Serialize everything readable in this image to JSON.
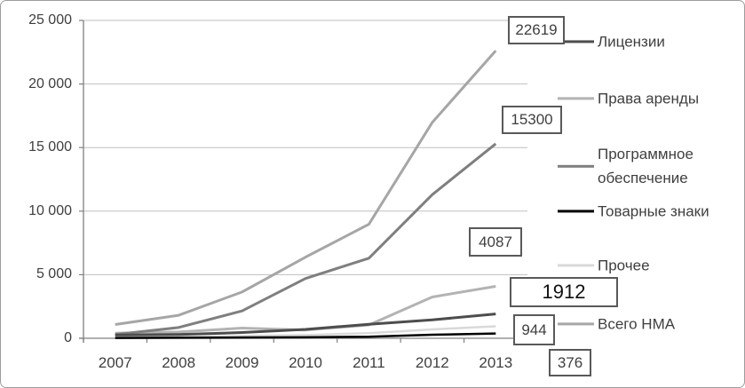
{
  "chart_data": {
    "type": "line",
    "title": "",
    "xlabel": "",
    "ylabel": "",
    "categories": [
      "2007",
      "2008",
      "2009",
      "2010",
      "2011",
      "2012",
      "2013"
    ],
    "series": [
      {
        "name": "Лицензии",
        "color": "#4d4d4d",
        "width": 3,
        "values": [
          250,
          300,
          450,
          700,
          1100,
          1450,
          1912
        ]
      },
      {
        "name": "Права аренды",
        "color": "#b3b3b3",
        "width": 3,
        "values": [
          400,
          500,
          800,
          650,
          1050,
          3250,
          4087
        ]
      },
      {
        "name": "Программное обеспечение",
        "color": "#7f7f7f",
        "width": 3,
        "values": [
          300,
          850,
          2150,
          4700,
          6300,
          11300,
          15300
        ]
      },
      {
        "name": "Товарные знаки",
        "color": "#000000",
        "width": 2.5,
        "values": [
          30,
          40,
          60,
          80,
          120,
          280,
          376
        ]
      },
      {
        "name": "Прочее",
        "color": "#d9d9d9",
        "width": 2.5,
        "values": [
          100,
          120,
          180,
          250,
          400,
          700,
          944
        ]
      },
      {
        "name": "Всего НМА",
        "color": "#a6a6a6",
        "width": 3,
        "values": [
          1080,
          1810,
          3640,
          6380,
          8970,
          16980,
          22619
        ]
      }
    ],
    "ylim": [
      0,
      25000
    ],
    "ytick_step": 5000,
    "yticklabels": [
      "25 000",
      "20 000",
      "15 000",
      "10 000",
      "5 000",
      "0"
    ],
    "grid": true,
    "gridline_color": "#bfbfbf",
    "axis_color": "#808080",
    "legend_position": "right",
    "data_labels_2013": [
      {
        "series": "Всего НМА",
        "text": "22619",
        "emphasis": false
      },
      {
        "series": "Программное обеспечение",
        "text": "15300",
        "emphasis": false
      },
      {
        "series": "Права аренды",
        "text": "4087",
        "emphasis": false
      },
      {
        "series": "Лицензии",
        "text": "1912",
        "emphasis": true
      },
      {
        "series": "Прочее",
        "text": "944",
        "emphasis": false
      },
      {
        "series": "Товарные знаки",
        "text": "376",
        "emphasis": false
      }
    ]
  }
}
